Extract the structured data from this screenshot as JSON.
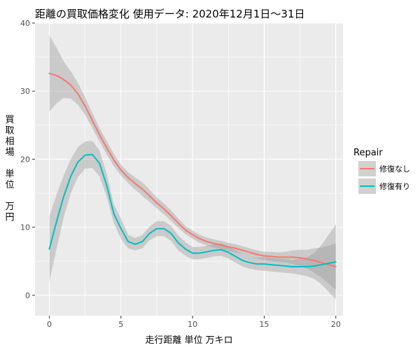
{
  "chart_data": {
    "type": "line",
    "title": "距離の買取価格変化 使用データ: 2020年12月1日～31日",
    "xlabel": "走行距離 単位 万キロ",
    "ylabel_chars": [
      "買",
      "取",
      "相",
      "場",
      "",
      "単",
      "位",
      "",
      "万",
      "円"
    ],
    "xlim": [
      -1,
      20.5
    ],
    "ylim": [
      -3,
      40
    ],
    "x_ticks": [
      0,
      5,
      10,
      15,
      20
    ],
    "y_ticks": [
      0,
      10,
      20,
      30,
      40
    ],
    "grid": true,
    "legend": {
      "title": "Repair",
      "position": "right",
      "entries": [
        "修復なし",
        "修復有り"
      ]
    },
    "series": [
      {
        "name": "修復なし",
        "color": "#F8766D",
        "x": [
          0,
          0.5,
          1,
          1.5,
          2,
          2.5,
          3,
          3.5,
          4,
          4.5,
          5,
          5.5,
          6,
          6.5,
          7,
          7.5,
          8,
          8.5,
          9,
          9.5,
          10,
          10.5,
          11,
          11.5,
          12,
          12.5,
          13,
          13.5,
          14,
          14.5,
          15,
          15.5,
          16,
          16.5,
          17,
          17.5,
          18,
          18.5,
          19,
          19.5,
          20
        ],
        "y": [
          32.6,
          32.3,
          31.7,
          30.9,
          29.6,
          27.8,
          25.7,
          23.6,
          21.7,
          19.9,
          18.4,
          17.3,
          16.4,
          15.6,
          14.6,
          13.6,
          12.7,
          11.7,
          10.6,
          9.6,
          8.9,
          8.3,
          7.9,
          7.6,
          7.4,
          7.1,
          6.9,
          6.6,
          6.3,
          6.0,
          5.8,
          5.7,
          5.6,
          5.6,
          5.6,
          5.5,
          5.3,
          5.1,
          4.8,
          4.5,
          4.2
        ],
        "band_low": [
          27.0,
          28.2,
          29.0,
          28.9,
          28.0,
          26.5,
          24.6,
          22.6,
          20.7,
          19.0,
          17.6,
          16.5,
          15.5,
          14.6,
          13.7,
          12.8,
          11.9,
          10.9,
          9.9,
          9.0,
          8.3,
          7.7,
          7.3,
          7.0,
          6.8,
          6.5,
          6.3,
          6.0,
          5.7,
          5.4,
          5.2,
          5.0,
          4.9,
          4.8,
          4.6,
          4.3,
          3.9,
          3.3,
          2.6,
          1.7,
          0.8
        ],
        "band_high": [
          38.2,
          36.4,
          34.4,
          32.9,
          31.2,
          29.1,
          26.8,
          24.6,
          22.7,
          20.8,
          19.2,
          18.1,
          17.3,
          16.6,
          15.5,
          14.4,
          13.5,
          12.5,
          11.3,
          10.2,
          9.5,
          8.9,
          8.5,
          8.2,
          8.0,
          7.7,
          7.5,
          7.2,
          6.9,
          6.6,
          6.4,
          6.4,
          6.3,
          6.4,
          6.6,
          6.7,
          6.7,
          6.9,
          7.0,
          7.3,
          7.6
        ]
      },
      {
        "name": "修復有り",
        "color": "#00BFC4",
        "x": [
          0,
          0.5,
          1,
          1.5,
          2,
          2.5,
          3,
          3.5,
          4,
          4.5,
          5,
          5.5,
          6,
          6.5,
          7,
          7.5,
          8,
          8.5,
          9,
          9.5,
          10,
          10.5,
          11,
          11.5,
          12,
          12.5,
          13,
          13.5,
          14,
          14.5,
          15,
          15.5,
          16,
          16.5,
          17,
          17.5,
          18,
          18.5,
          19,
          19.5,
          20
        ],
        "y": [
          6.8,
          10.8,
          14.5,
          17.5,
          19.6,
          20.6,
          20.7,
          19.4,
          16.2,
          12.0,
          9.8,
          7.9,
          7.5,
          7.9,
          9.1,
          9.8,
          9.8,
          9.1,
          7.7,
          6.8,
          6.2,
          6.2,
          6.4,
          6.6,
          6.7,
          6.3,
          5.7,
          5.1,
          4.8,
          4.6,
          4.6,
          4.5,
          4.4,
          4.3,
          4.2,
          4.2,
          4.2,
          4.3,
          4.5,
          4.7,
          4.9
        ],
        "band_low": [
          2.0,
          6.8,
          11.4,
          15.0,
          17.4,
          18.6,
          18.7,
          17.5,
          14.5,
          10.6,
          8.3,
          6.9,
          6.6,
          6.9,
          8.1,
          8.7,
          8.7,
          8.0,
          6.6,
          5.8,
          5.3,
          5.3,
          5.5,
          5.7,
          5.8,
          5.4,
          4.8,
          4.2,
          3.9,
          3.7,
          3.6,
          3.5,
          3.4,
          3.3,
          3.2,
          3.0,
          2.8,
          2.4,
          1.6,
          0.5,
          -0.6
        ],
        "band_high": [
          11.6,
          14.8,
          17.6,
          20.0,
          21.8,
          22.6,
          22.7,
          21.3,
          17.9,
          13.4,
          11.3,
          8.9,
          8.4,
          8.9,
          10.1,
          10.9,
          10.9,
          10.2,
          8.8,
          7.8,
          7.1,
          7.1,
          7.3,
          7.5,
          7.6,
          7.2,
          6.6,
          6.0,
          5.7,
          5.5,
          5.6,
          5.5,
          5.4,
          5.3,
          5.2,
          5.4,
          5.6,
          6.2,
          7.4,
          8.9,
          10.4
        ]
      }
    ]
  }
}
